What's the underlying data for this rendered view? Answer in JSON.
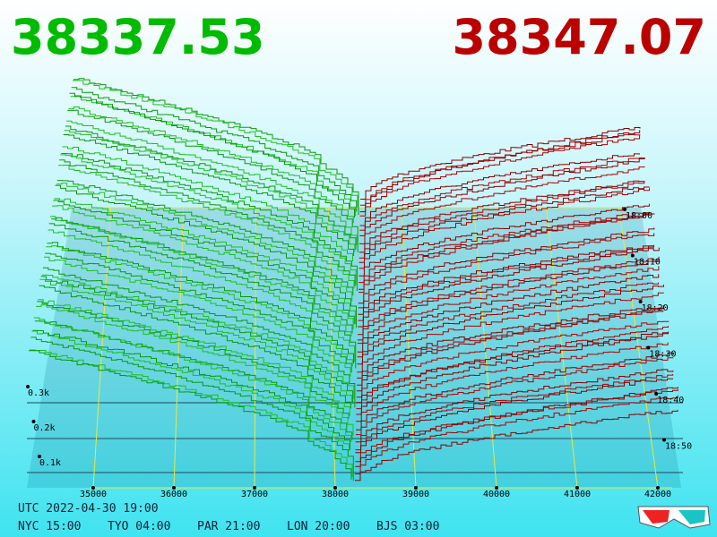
{
  "bid_price": "38337.53",
  "ask_price": "38347.07",
  "price_labels": [
    "35000",
    "36000",
    "37000",
    "38000",
    "39000",
    "40000",
    "41000",
    "42000"
  ],
  "volume_labels": [
    "0.3k",
    "0.2k",
    "0.1k"
  ],
  "time_labels": [
    "18:00",
    "18:10",
    "18:20",
    "18:30",
    "18:40",
    "18:50"
  ],
  "footer": {
    "utc": "UTC 2022-04-30 19:00",
    "cities": [
      "NYC 15:00",
      "TYO 04:00",
      "PAR 21:00",
      "LON 20:00",
      "BJS 03:00"
    ]
  }
}
